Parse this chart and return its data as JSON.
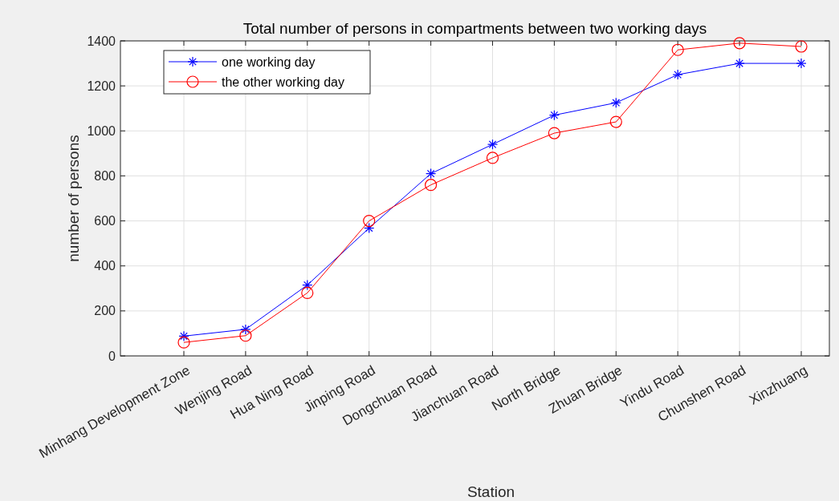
{
  "chart_data": {
    "type": "line",
    "title": "Total number of persons in compartments between two working days",
    "xlabel": "Station",
    "ylabel": "number of persons",
    "categories": [
      "Minhang Development Zone",
      "Wenjing Road",
      "Hua Ning Road",
      "Jinping Road",
      "Dongchuan Road",
      "Jianchuan Road",
      "North Bridge",
      "Zhuan Bridge",
      "Yindu Road",
      "Chunshen Road",
      "Xinzhuang"
    ],
    "series": [
      {
        "name": "one working day",
        "color": "#0000ff",
        "marker": "cross",
        "values": [
          88,
          118,
          315,
          568,
          810,
          940,
          1070,
          1125,
          1250,
          1300,
          1300
        ]
      },
      {
        "name": "the other working day",
        "color": "#ff0000",
        "marker": "circle",
        "values": [
          60,
          90,
          280,
          600,
          760,
          880,
          990,
          1040,
          1360,
          1390,
          1375
        ]
      }
    ],
    "ylim": [
      0,
      1400
    ],
    "yticks": [
      0,
      200,
      400,
      600,
      800,
      1000,
      1200,
      1400
    ],
    "grid": true,
    "legend": "top left",
    "line_style": "solid"
  }
}
